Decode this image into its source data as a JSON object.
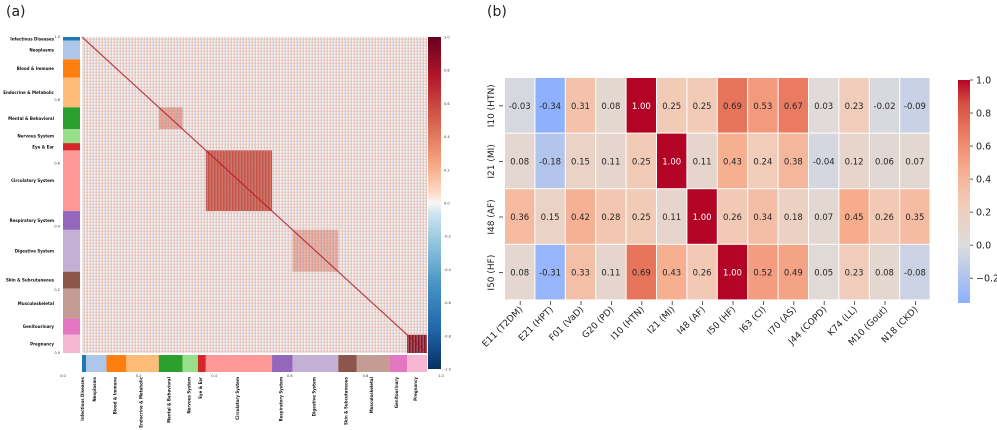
{
  "panels": {
    "a": "(a)",
    "b": "(b)"
  },
  "colors": {
    "Infectious Diseases": "#1f77b4",
    "Neoplasms": "#aec7e8",
    "Blood & Immune": "#ff7f0e",
    "Endocrine & Metabolic": "#ffbb78",
    "Mental & Behavioral": "#2ca02c",
    "Nervous System": "#98df8a",
    "Eye & Ear": "#d62728",
    "Circulatory System": "#ff9896",
    "Respiratory System": "#9467bd",
    "Digestive System": "#c5b0d5",
    "Skin & Subcutaneous": "#8c564b",
    "Musculoskeletal": "#c49c94",
    "Genitourinary": "#e377c2",
    "Pregnancy": "#f7b6d2"
  },
  "chart_data": [
    {
      "type": "heatmap",
      "panel": "(a)",
      "title": "",
      "left_categories": [
        "Infectious Diseases",
        "Neoplasms",
        "Blood & Immune",
        "Endocrine & Metabolic",
        "Mental & Behavioral",
        "Nervous System",
        "Eye & Ear",
        "Circulatory System",
        "Respiratory System",
        "Digestive System",
        "Skin & Subcutaneous",
        "Musculoskeletal",
        "Genitourinary",
        "Pregnancy"
      ],
      "bottom_categories": [
        "Infectious Diseases",
        "Neoplasms",
        "Blood & Immune",
        "Endocrine & Metabolic",
        "Mental & Behavioral",
        "Nervous System",
        "Eye & Ear",
        "Circulatory System",
        "Respiratory System",
        "Digestive System",
        "Skin & Subcutaneous",
        "Musculoskeletal",
        "Genitourinary",
        "Pregnancy"
      ],
      "category_fractions": [
        0.012,
        0.062,
        0.06,
        0.098,
        0.072,
        0.046,
        0.024,
        0.2,
        0.062,
        0.138,
        0.056,
        0.098,
        0.054,
        0.06
      ],
      "strong_blocks": [
        {
          "category": "Mental & Behavioral",
          "level": 0.55
        },
        {
          "category": "Circulatory System",
          "level": 0.85
        },
        {
          "category": "Digestive System",
          "level": 0.45
        },
        {
          "category": "Pregnancy",
          "level": 0.95
        }
      ],
      "axis_ticks": {
        "left": [
          "1.0",
          "0.8",
          "0.6",
          "0.4",
          "0.2",
          "0.0"
        ],
        "bottom": [
          "0.0",
          "0.2",
          "0.4",
          "0.6",
          "0.8",
          "1.0"
        ]
      },
      "colorbar": {
        "range": [
          -1.0,
          1.0
        ],
        "ticks": [
          "1.0",
          "0.8",
          "0.6",
          "0.4",
          "0.2",
          "0.0",
          "-0.2",
          "-0.4",
          "-0.6",
          "-0.8",
          "-1.0"
        ]
      }
    },
    {
      "type": "heatmap",
      "panel": "(b)",
      "title": "",
      "rows": [
        "I10 (HTN)",
        "I21 (MI)",
        "I48 (AF)",
        "I50 (HF)"
      ],
      "columns": [
        "E11 (T2DM)",
        "E21 (HPT)",
        "F01 (VaD)",
        "G20 (PD)",
        "I10 (HTN)",
        "I21 (MI)",
        "I48 (AF)",
        "I50 (HF)",
        "I63 (CI)",
        "I70 (AS)",
        "J44 (COPD)",
        "K74 (LL)",
        "M10 (Gout)",
        "N18 (CKD)"
      ],
      "values": [
        [
          -0.03,
          -0.34,
          0.31,
          0.08,
          1.0,
          0.25,
          0.25,
          0.69,
          0.53,
          0.67,
          0.03,
          0.23,
          -0.02,
          -0.09
        ],
        [
          0.08,
          -0.18,
          0.15,
          0.11,
          0.25,
          1.0,
          0.11,
          0.43,
          0.24,
          0.38,
          -0.04,
          0.12,
          0.06,
          0.07
        ],
        [
          0.36,
          0.15,
          0.42,
          0.28,
          0.25,
          0.11,
          1.0,
          0.26,
          0.34,
          0.18,
          0.07,
          0.45,
          0.26,
          0.35
        ],
        [
          0.08,
          -0.31,
          0.33,
          0.11,
          0.69,
          0.43,
          0.26,
          1.0,
          0.52,
          0.49,
          0.05,
          0.23,
          0.08,
          -0.08
        ]
      ],
      "labels": [
        [
          "-0.03",
          "-0.34",
          "0.31",
          "0.08",
          "1.00",
          "0.25",
          "0.25",
          "0.69",
          "0.53",
          "0.67",
          "0.03",
          "0.23",
          "-0.02",
          "-0.09"
        ],
        [
          "0.08",
          "-0.18",
          "0.15",
          "0.11",
          "0.25",
          "1.00",
          "0.11",
          "0.43",
          "0.24",
          "0.38",
          "-0.04",
          "0.12",
          "0.06",
          "0.07"
        ],
        [
          "0.36",
          "0.15",
          "0.42",
          "0.28",
          "0.25",
          "0.11",
          "1.00",
          "0.26",
          "0.34",
          "0.18",
          "0.07",
          "0.45",
          "0.26",
          "0.35"
        ],
        [
          "0.08",
          "-0.31",
          "0.33",
          "0.11",
          "0.69",
          "0.43",
          "0.26",
          "1.00",
          "0.52",
          "0.49",
          "0.05",
          "0.23",
          "0.08",
          "-0.08"
        ]
      ],
      "colorbar": {
        "range": [
          -0.35,
          1.0
        ],
        "ticks": [
          "1.0",
          "0.8",
          "0.6",
          "0.4",
          "0.2",
          "0.0",
          "−0.2"
        ],
        "tick_values": [
          1.0,
          0.8,
          0.6,
          0.4,
          0.2,
          0.0,
          -0.2
        ]
      }
    }
  ]
}
